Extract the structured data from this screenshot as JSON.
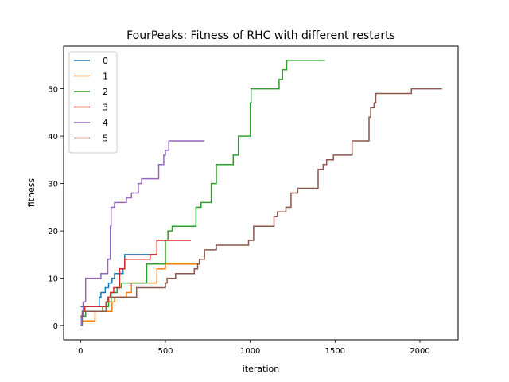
{
  "chart_data": {
    "type": "line",
    "title": "FourPeaks: Fitness of RHC with different restarts",
    "xlabel": "iteration",
    "ylabel": "fitness",
    "xlim": [
      -100,
      2225
    ],
    "ylim": [
      -3,
      59
    ],
    "xticks": [
      0,
      500,
      1000,
      1500,
      2000
    ],
    "yticks": [
      0,
      10,
      20,
      30,
      40,
      50
    ],
    "grid": false,
    "legend": "top-left",
    "step": true,
    "series": [
      {
        "name": "0",
        "color": "#1f77b4",
        "x": [
          0,
          40,
          100,
          110,
          120,
          145,
          165,
          185,
          200,
          215,
          250,
          260,
          450
        ],
        "y": [
          4,
          4,
          4,
          6,
          7,
          8,
          9,
          10,
          11,
          11,
          12,
          15,
          15
        ]
      },
      {
        "name": "1",
        "color": "#ff7f0e",
        "x": [
          0,
          5,
          60,
          85,
          100,
          120,
          150,
          175,
          185,
          200,
          270,
          300,
          340,
          370,
          450,
          500,
          700
        ],
        "y": [
          0,
          1,
          1,
          3,
          3,
          3,
          3,
          3,
          5,
          6,
          7,
          9,
          9,
          9,
          12,
          13,
          13
        ]
      },
      {
        "name": "2",
        "color": "#2ca02c",
        "x": [
          0,
          10,
          20,
          30,
          80,
          130,
          165,
          180,
          190,
          215,
          240,
          300,
          390,
          500,
          515,
          540,
          680,
          700,
          710,
          770,
          790,
          800,
          900,
          930,
          970,
          1000,
          1005,
          1020,
          1170,
          1190,
          1215,
          1245,
          1440
        ],
        "y": [
          0,
          2,
          2,
          3,
          3,
          4,
          5,
          7,
          7,
          8,
          9,
          9,
          13,
          18,
          20,
          21,
          25,
          25,
          26,
          30,
          30,
          34,
          36,
          40,
          40,
          47,
          50,
          50,
          52,
          54,
          56,
          56,
          56
        ]
      },
      {
        "name": "3",
        "color": "#d62728",
        "x": [
          0,
          15,
          25,
          45,
          130,
          150,
          165,
          175,
          195,
          230,
          260,
          350,
          410,
          440,
          450,
          500,
          650
        ],
        "y": [
          2,
          3,
          4,
          4,
          4,
          5,
          6,
          7,
          8,
          12,
          14,
          14,
          15,
          15,
          18,
          18,
          18
        ]
      },
      {
        "name": "4",
        "color": "#9467bd",
        "x": [
          0,
          5,
          15,
          30,
          110,
          120,
          160,
          175,
          180,
          200,
          240,
          270,
          300,
          340,
          360,
          390,
          420,
          460,
          470,
          490,
          500,
          520,
          560,
          610,
          730
        ],
        "y": [
          0,
          2,
          5,
          10,
          10,
          11,
          14,
          21,
          25,
          26,
          26,
          27,
          28,
          30,
          31,
          31,
          31,
          34,
          34,
          36,
          37,
          39,
          39,
          39,
          39
        ]
      },
      {
        "name": "5",
        "color": "#8c564b",
        "x": [
          0,
          10,
          50,
          150,
          160,
          200,
          250,
          330,
          470,
          500,
          510,
          560,
          600,
          670,
          690,
          700,
          730,
          750,
          780,
          800,
          990,
          1020,
          1140,
          1160,
          1190,
          1210,
          1240,
          1280,
          1370,
          1400,
          1430,
          1450,
          1490,
          1560,
          1600,
          1670,
          1700,
          1710,
          1720,
          1730,
          1740,
          1920,
          1950,
          2130
        ],
        "y": [
          2,
          3,
          3,
          5,
          6,
          6,
          6,
          8,
          8,
          9,
          10,
          11,
          11,
          12,
          13,
          14,
          16,
          16,
          16,
          17,
          18,
          21,
          23,
          24,
          24,
          25,
          28,
          29,
          29,
          33,
          34,
          35,
          36,
          36,
          39,
          39,
          44,
          46,
          46,
          47,
          49,
          49,
          50,
          50
        ]
      }
    ]
  }
}
